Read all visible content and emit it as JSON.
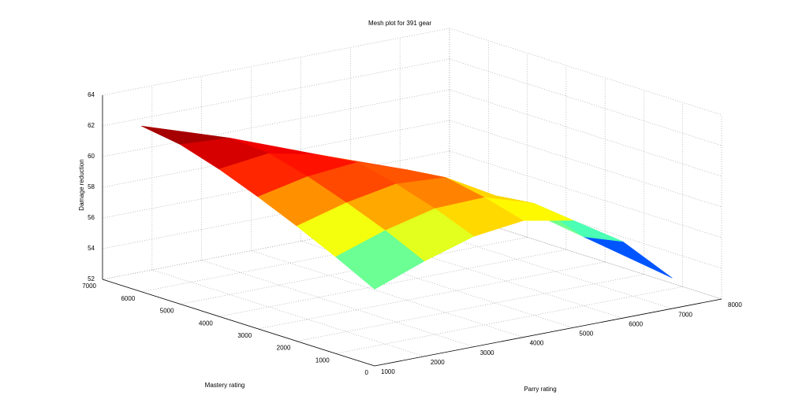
{
  "chart_data": {
    "type": "mesh",
    "title": "Mesh plot for 391 gear",
    "xlabel": "Parry rating",
    "ylabel": "Mastery rating",
    "zlabel": "Damage reduction",
    "x": [
      1000,
      2000,
      3000,
      4000,
      5000,
      6000,
      7000
    ],
    "y": [
      0,
      1000,
      2000,
      3000,
      4000,
      5000,
      6000
    ],
    "z": [
      [
        57.0,
        58.2,
        59.2,
        59.6,
        59.0,
        57.0,
        54.0
      ],
      [
        58.3,
        59.4,
        60.2,
        60.3,
        59.3,
        56.5,
        null
      ],
      [
        59.5,
        60.4,
        61.0,
        60.8,
        59.0,
        null,
        null
      ],
      [
        60.6,
        61.3,
        61.6,
        60.5,
        null,
        null,
        null
      ],
      [
        61.6,
        62.0,
        61.3,
        null,
        null,
        null,
        null
      ],
      [
        62.4,
        62.2,
        null,
        null,
        null,
        null,
        null
      ],
      [
        62.8,
        null,
        null,
        null,
        null,
        null,
        null
      ]
    ],
    "xlim": [
      1000,
      8000
    ],
    "ylim": [
      0,
      7000
    ],
    "zlim": [
      52,
      64
    ],
    "xticks": [
      1000,
      2000,
      3000,
      4000,
      5000,
      6000,
      7000,
      8000
    ],
    "yticks": [
      0,
      1000,
      2000,
      3000,
      4000,
      5000,
      6000,
      7000
    ],
    "zticks": [
      52,
      54,
      56,
      58,
      60,
      62,
      64
    ],
    "colormap": "jet",
    "grid": true
  }
}
